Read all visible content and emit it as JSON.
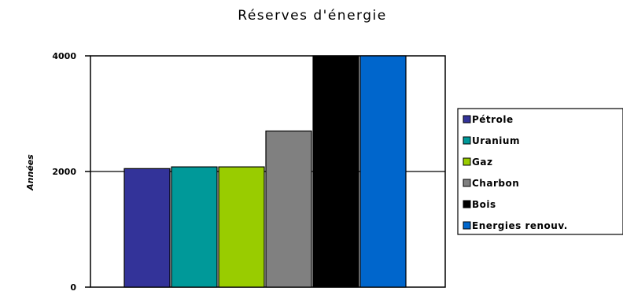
{
  "chart_data": {
    "type": "bar",
    "title": "Réserves d'énergie",
    "ylabel": "Années",
    "xlabel": "",
    "ylim": [
      0,
      4000
    ],
    "yticks": [
      0,
      2000,
      4000
    ],
    "grid": true,
    "legend_position": "right",
    "series": [
      {
        "name": "Pétrole",
        "value": 2050,
        "color": "#333399"
      },
      {
        "name": "Uranium",
        "value": 2080,
        "color": "#009999"
      },
      {
        "name": "Gaz",
        "value": 2080,
        "color": "#99cc00"
      },
      {
        "name": "Charbon",
        "value": 2700,
        "color": "#808080"
      },
      {
        "name": "Bois",
        "value": 4000,
        "color": "#000000"
      },
      {
        "name": "Energies renouv.",
        "value": 4000,
        "color": "#0066cc"
      }
    ]
  }
}
